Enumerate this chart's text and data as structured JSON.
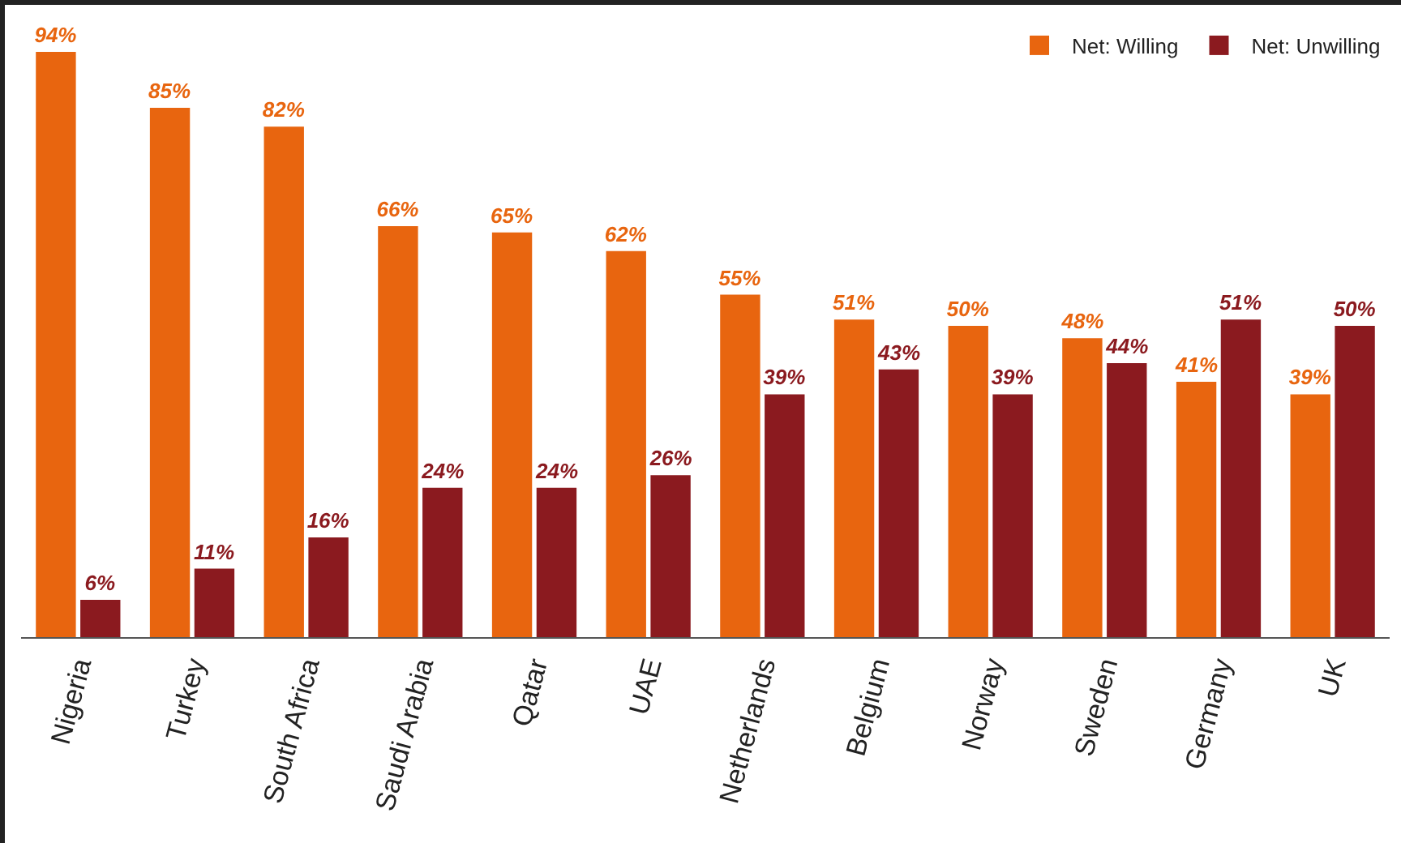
{
  "chart_data": {
    "type": "bar",
    "categories": [
      "Nigeria",
      "Turkey",
      "South Africa",
      "Saudi Arabia",
      "Qatar",
      "UAE",
      "Netherlands",
      "Belgium",
      "Norway",
      "Sweden",
      "Germany",
      "UK"
    ],
    "series": [
      {
        "name": "Net: Willing",
        "color": "#e8650f",
        "values": [
          94,
          85,
          82,
          66,
          65,
          62,
          55,
          51,
          50,
          48,
          41,
          39
        ],
        "value_labels": [
          "94%",
          "85%",
          "82%",
          "66%",
          "65%",
          "62%",
          "55%",
          "51%",
          "50%",
          "48%",
          "41%",
          "39%"
        ]
      },
      {
        "name": "Net: Unwilling",
        "color": "#8b1a1f",
        "values": [
          6,
          11,
          16,
          24,
          24,
          26,
          39,
          43,
          39,
          44,
          51,
          50
        ],
        "value_labels": [
          "6%",
          "11%",
          "16%",
          "24%",
          "24%",
          "26%",
          "39%",
          "43%",
          "39%",
          "44%",
          "51%",
          "50%"
        ]
      }
    ],
    "legend": "top right",
    "tick_labels": "x"
  }
}
